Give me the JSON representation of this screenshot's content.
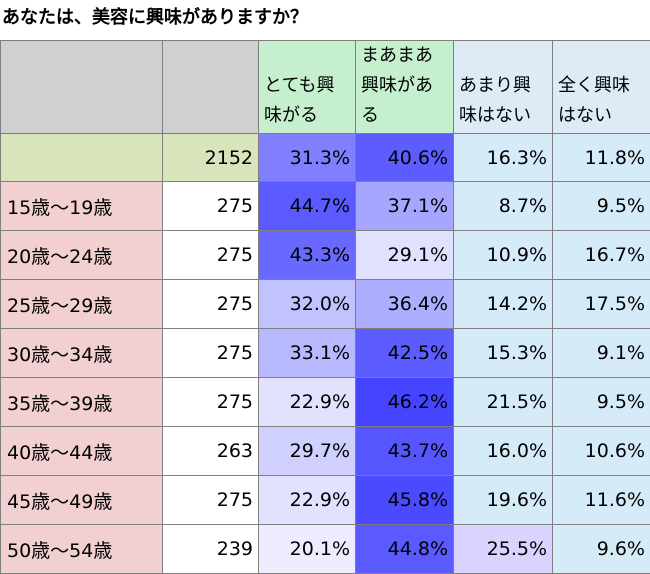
{
  "title": "あなたは、美容に興味がありますか？",
  "columns": {
    "very_interested": "とても興味がる",
    "somewhat_interested": "まあまあ興味がある",
    "not_much": "あまり興味はない",
    "not_at_all": "全く興味はない"
  },
  "rows": [
    {
      "label": "",
      "n": "2152",
      "v1": "31.3%",
      "v2": "40.6%",
      "v3": "16.3%",
      "v4": "11.8%"
    },
    {
      "label": "15歳～19歳",
      "n": "275",
      "v1": "44.7%",
      "v2": "37.1%",
      "v3": "8.7%",
      "v4": "9.5%"
    },
    {
      "label": "20歳～24歳",
      "n": "275",
      "v1": "43.3%",
      "v2": "29.1%",
      "v3": "10.9%",
      "v4": "16.7%"
    },
    {
      "label": "25歳～29歳",
      "n": "275",
      "v1": "32.0%",
      "v2": "36.4%",
      "v3": "14.2%",
      "v4": "17.5%"
    },
    {
      "label": "30歳～34歳",
      "n": "275",
      "v1": "33.1%",
      "v2": "42.5%",
      "v3": "15.3%",
      "v4": "9.1%"
    },
    {
      "label": "35歳～39歳",
      "n": "275",
      "v1": "22.9%",
      "v2": "46.2%",
      "v3": "21.5%",
      "v4": "9.5%"
    },
    {
      "label": "40歳～44歳",
      "n": "263",
      "v1": "29.7%",
      "v2": "43.7%",
      "v3": "16.0%",
      "v4": "10.6%"
    },
    {
      "label": "45歳～49歳",
      "n": "275",
      "v1": "22.9%",
      "v2": "45.8%",
      "v3": "19.6%",
      "v4": "11.6%"
    },
    {
      "label": "50歳～54歳",
      "n": "239",
      "v1": "20.1%",
      "v2": "44.8%",
      "v3": "25.5%",
      "v4": "9.6%"
    }
  ],
  "colors": {
    "total_row_fill": "#d8e4bc",
    "age_label_fill": "#f2cfd0",
    "count_fill": "#ffffff",
    "grid": "#7f7f7f",
    "heat_scale": [
      "#ffffff",
      "#7373ff"
    ]
  },
  "cell_fills": [
    [
      "#8080ff",
      "#5c5cff",
      "#d6ebf8",
      "#d6ebf8"
    ],
    [
      "#5a5aff",
      "#a6a6ff",
      "#d6ebf8",
      "#d6ebf8"
    ],
    [
      "#6969ff",
      "#e0e0ff",
      "#d6ebf8",
      "#d6ebf8"
    ],
    [
      "#c2c2ff",
      "#aeaeff",
      "#d6ebf8",
      "#d6ebf8"
    ],
    [
      "#b8b8ff",
      "#5c5cff",
      "#d6ebf8",
      "#d6ebf8"
    ],
    [
      "#e2e2ff",
      "#4545ff",
      "#d6ebf8",
      "#d6ebf8"
    ],
    [
      "#d0d0ff",
      "#5656ff",
      "#d6ebf8",
      "#d6ebf8"
    ],
    [
      "#e2e2ff",
      "#4a4aff",
      "#d6ebf8",
      "#d6ebf8"
    ],
    [
      "#ededff",
      "#5a5aff",
      "#d8d4ff",
      "#d6ebf8"
    ]
  ]
}
